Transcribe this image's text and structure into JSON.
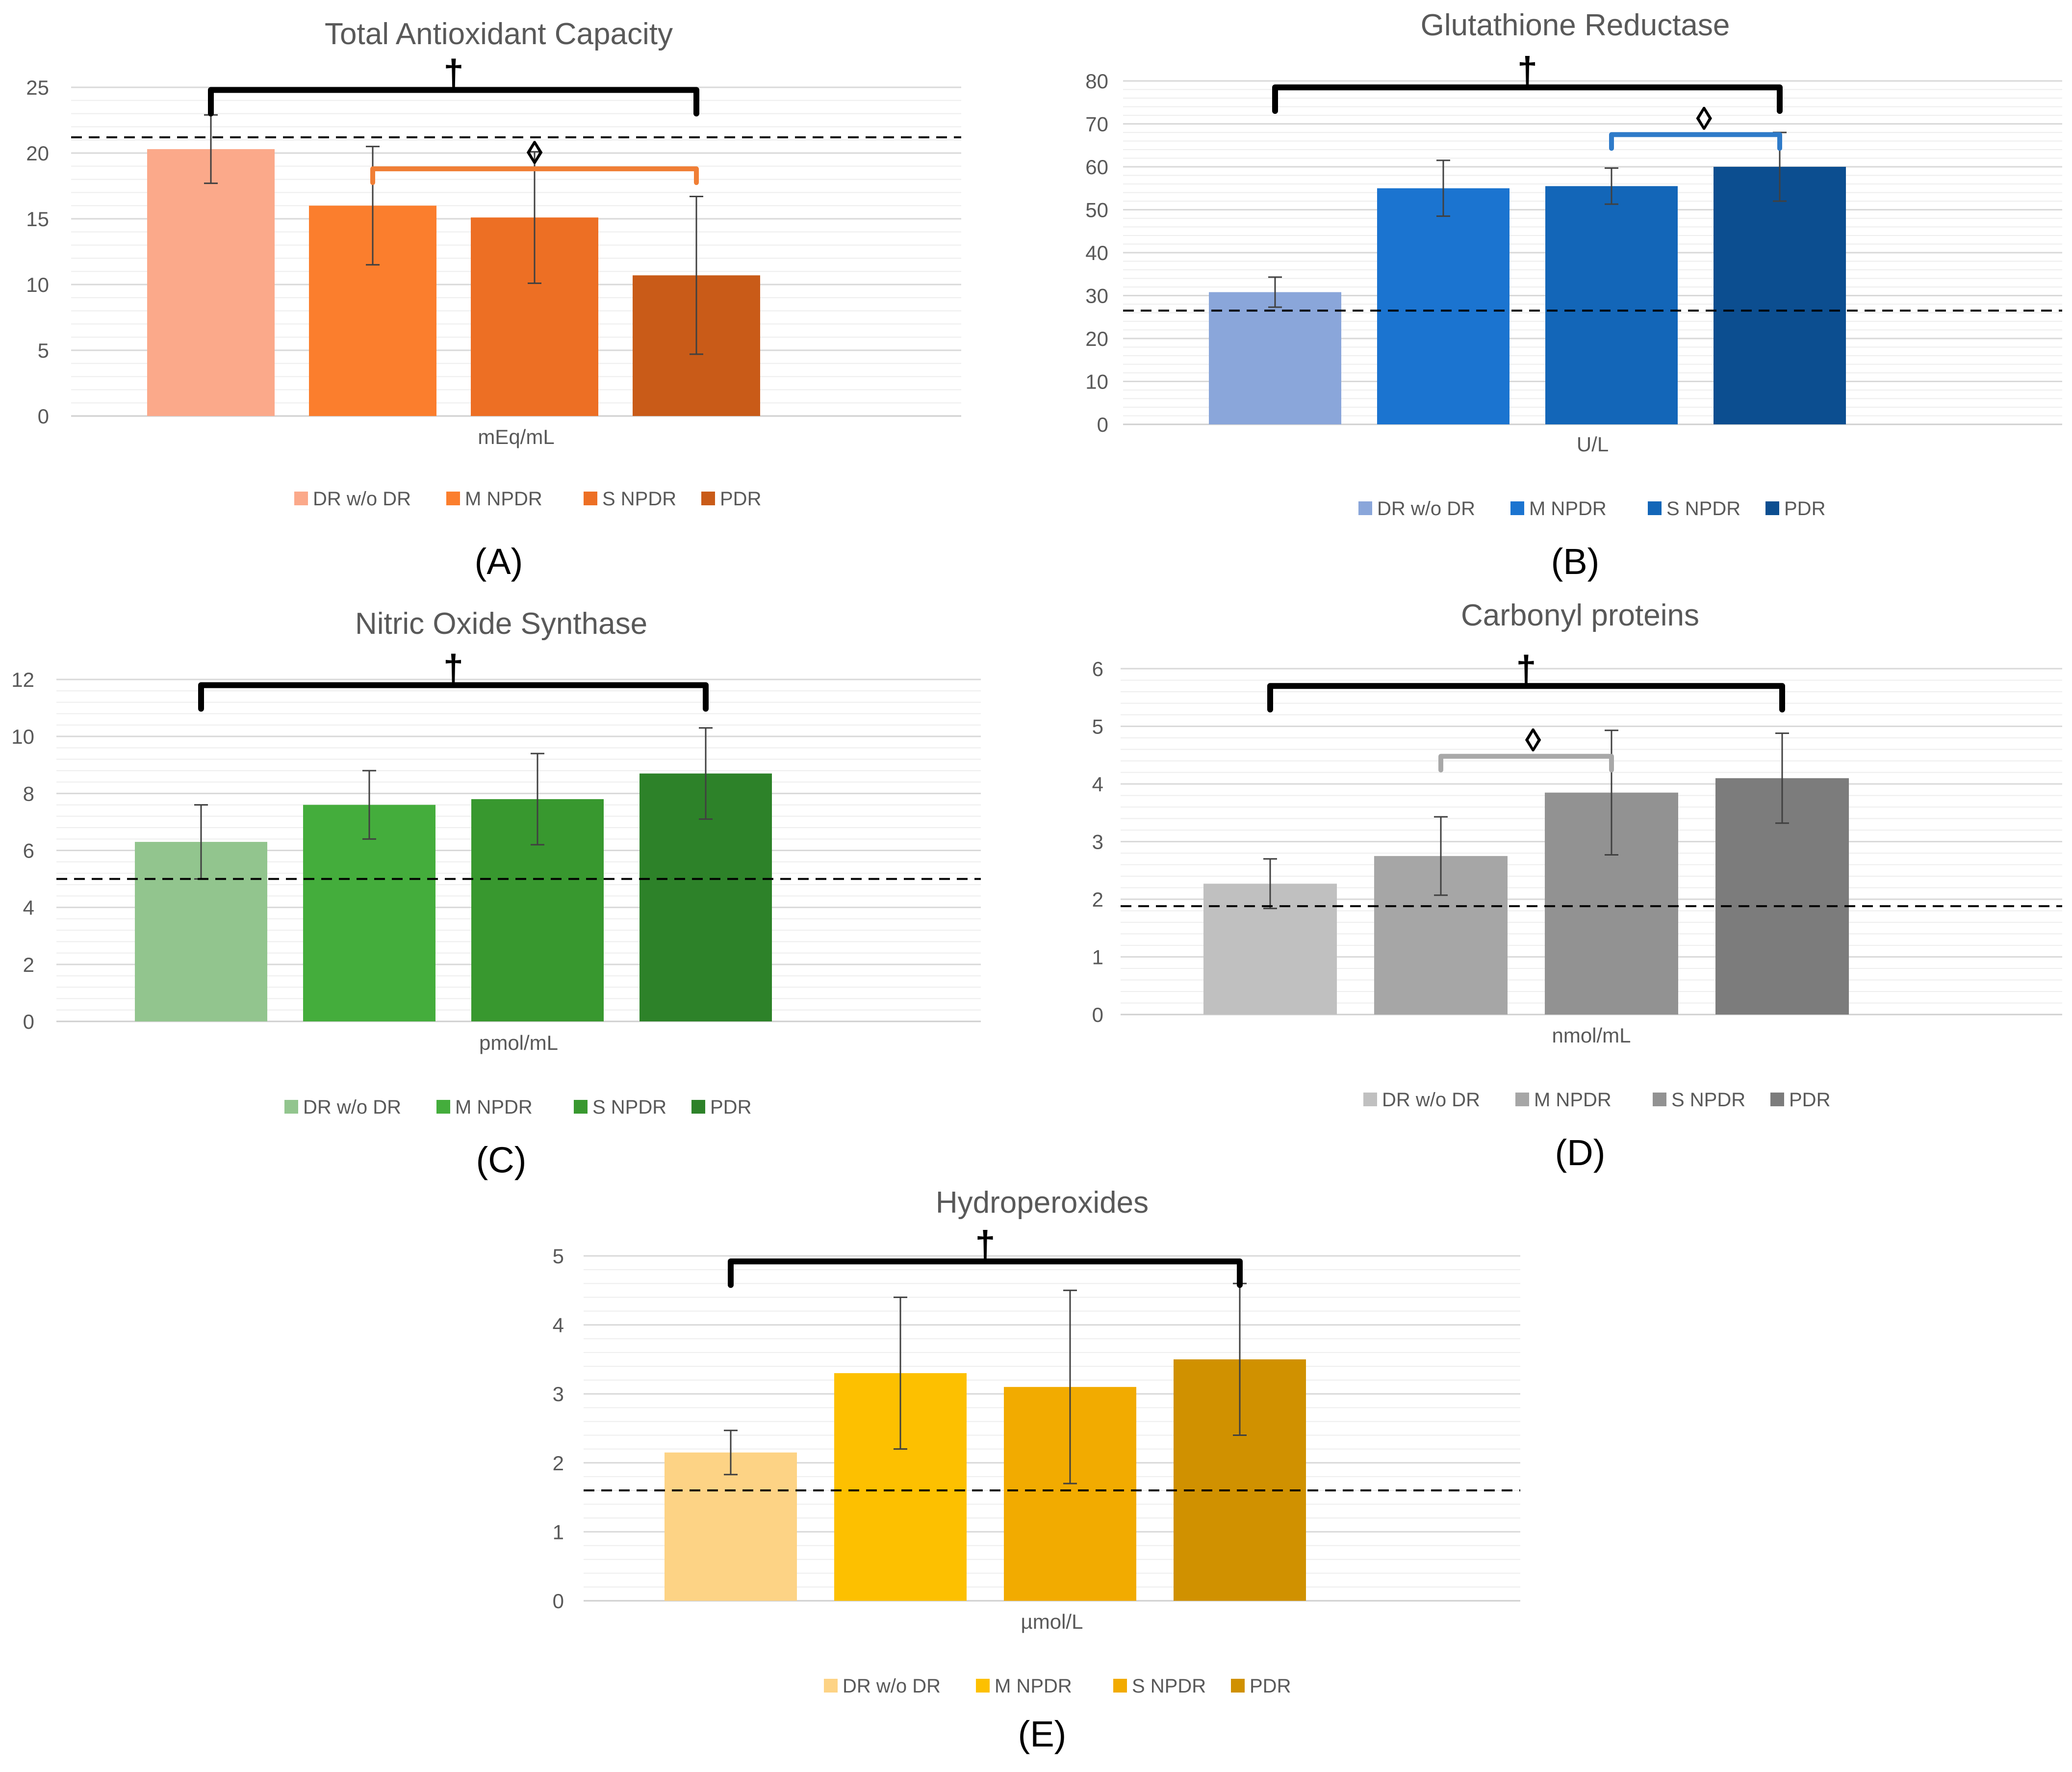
{
  "chart_data": [
    {
      "type": "bar",
      "panel_label": "(A)",
      "title": "Total Antioxidant Capacity",
      "xlabel": "mEq/mL",
      "ylim": [
        0,
        25
      ],
      "yticks": [
        0,
        5,
        10,
        15,
        20,
        25
      ],
      "categories": [
        "DR w/o DR",
        "M NPDR",
        "S NPDR",
        "PDR"
      ],
      "values": [
        20.3,
        16.0,
        15.1,
        10.7
      ],
      "errors": [
        2.6,
        4.5,
        5.0,
        6.0
      ],
      "colors": [
        "#FBA98A",
        "#FB7E2D",
        "#ED6F24",
        "#C95B18"
      ],
      "reference_line": 21.2,
      "annotations": [
        {
          "symbol": "†",
          "from": 0,
          "to": 3,
          "level": 24.8,
          "color": "#000000"
        },
        {
          "symbol": "◊",
          "from": 1,
          "to": 3,
          "level": 18.8,
          "color": "#F07E35"
        }
      ]
    },
    {
      "type": "bar",
      "panel_label": "(B)",
      "title": "Glutathione Reductase",
      "xlabel": "U/L",
      "ylim": [
        0,
        80
      ],
      "yticks": [
        0,
        10,
        20,
        30,
        40,
        50,
        60,
        70,
        80
      ],
      "categories": [
        "DR w/o DR",
        "M NPDR",
        "S NPDR",
        "PDR"
      ],
      "values": [
        30.8,
        55.0,
        55.5,
        60.0
      ],
      "errors": [
        3.5,
        6.5,
        4.2,
        8.0
      ],
      "colors": [
        "#8AA6DA",
        "#1B74D0",
        "#1366B8",
        "#0C4E90"
      ],
      "reference_line": 26.5,
      "annotations": [
        {
          "symbol": "†",
          "from": 0,
          "to": 3,
          "level": 78.5,
          "color": "#000000"
        },
        {
          "symbol": "◊",
          "from": 2,
          "to": 3,
          "level": 67.5,
          "color": "#2F7BC9"
        }
      ]
    },
    {
      "type": "bar",
      "panel_label": "(C)",
      "title": "Nitric Oxide Synthase",
      "xlabel": "pmol/mL",
      "ylim": [
        0,
        12
      ],
      "yticks": [
        0,
        2,
        4,
        6,
        8,
        10,
        12
      ],
      "categories": [
        "DR w/o DR",
        "M NPDR",
        "S NPDR",
        "PDR"
      ],
      "values": [
        6.3,
        7.6,
        7.8,
        8.7
      ],
      "errors": [
        1.3,
        1.2,
        1.6,
        1.6
      ],
      "colors": [
        "#92C58E",
        "#44AD3C",
        "#38982F",
        "#2D8229"
      ],
      "reference_line": 5.0,
      "annotations": [
        {
          "symbol": "†",
          "from": 0,
          "to": 3,
          "level": 11.8,
          "color": "#000000"
        }
      ]
    },
    {
      "type": "bar",
      "panel_label": "(D)",
      "title": "Carbonyl proteins",
      "xlabel": "nmol/mL",
      "ylim": [
        0,
        6
      ],
      "yticks": [
        0,
        1,
        2,
        3,
        4,
        5,
        6
      ],
      "categories": [
        "DR w/o DR",
        "M NPDR",
        "S NPDR",
        "PDR"
      ],
      "values": [
        2.27,
        2.75,
        3.85,
        4.1
      ],
      "errors": [
        0.43,
        0.68,
        1.08,
        0.78
      ],
      "colors": [
        "#C0C0C0",
        "#A6A6A6",
        "#929292",
        "#7C7C7C"
      ],
      "reference_line": 1.88,
      "annotations": [
        {
          "symbol": "†",
          "from": 0,
          "to": 3,
          "level": 5.7,
          "color": "#000000"
        },
        {
          "symbol": "◊",
          "from": 1,
          "to": 2,
          "level": 4.48,
          "color": "#A8A8A8"
        }
      ]
    },
    {
      "type": "bar",
      "panel_label": "(E)",
      "title": "Hydroperoxides",
      "xlabel": "µmol/L",
      "ylim": [
        0,
        5
      ],
      "yticks": [
        0,
        1,
        2,
        3,
        4,
        5
      ],
      "categories": [
        "DR w/o DR",
        "M NPDR",
        "S NPDR",
        "PDR"
      ],
      "values": [
        2.15,
        3.3,
        3.1,
        3.5
      ],
      "errors": [
        0.32,
        1.1,
        1.4,
        1.1
      ],
      "colors": [
        "#FDD385",
        "#FDC000",
        "#F2AB00",
        "#D09100"
      ],
      "reference_line": 1.6,
      "annotations": [
        {
          "symbol": "†",
          "from": 0,
          "to": 3,
          "level": 4.92,
          "color": "#000000"
        }
      ]
    }
  ]
}
